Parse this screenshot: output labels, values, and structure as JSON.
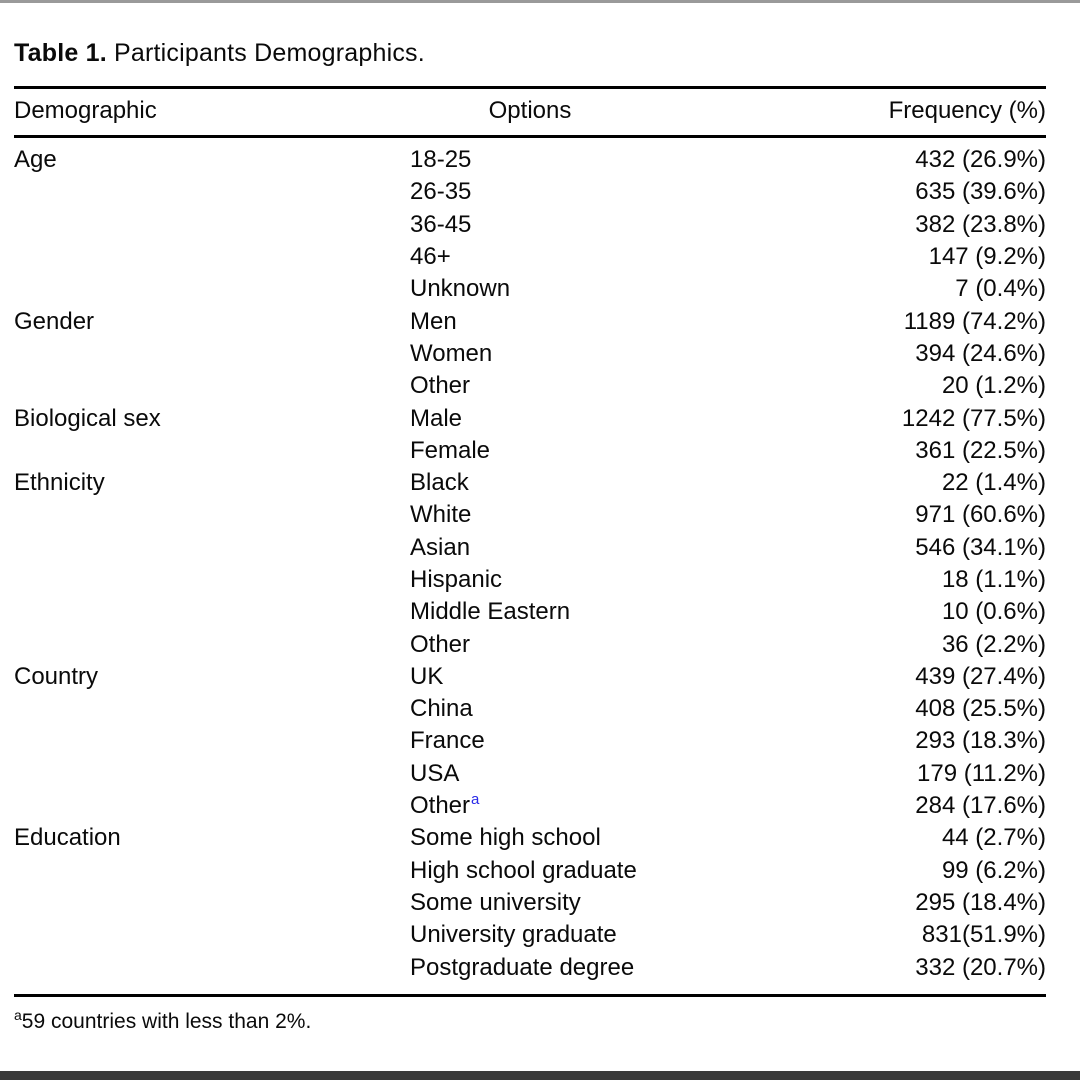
{
  "caption": {
    "label": "Table 1.",
    "text": " Participants Demographics."
  },
  "table": {
    "headers": {
      "demographic": "Demographic",
      "options": "Options",
      "frequency": "Frequency (%)"
    },
    "groups": [
      {
        "demographic": "Age",
        "rows": [
          {
            "option": "18-25",
            "frequency": "432 (26.9%)"
          },
          {
            "option": "26-35",
            "frequency": "635 (39.6%)"
          },
          {
            "option": "36-45",
            "frequency": "382 (23.8%)"
          },
          {
            "option": "46+",
            "frequency": "147 (9.2%)"
          },
          {
            "option": "Unknown",
            "frequency": "7 (0.4%)"
          }
        ]
      },
      {
        "demographic": "Gender",
        "rows": [
          {
            "option": "Men",
            "frequency": "1189 (74.2%)"
          },
          {
            "option": "Women",
            "frequency": "394 (24.6%)"
          },
          {
            "option": "Other",
            "frequency": "20 (1.2%)"
          }
        ]
      },
      {
        "demographic": "Biological sex",
        "rows": [
          {
            "option": "Male",
            "frequency": "1242 (77.5%)"
          },
          {
            "option": "Female",
            "frequency": "361 (22.5%)"
          }
        ]
      },
      {
        "demographic": "Ethnicity",
        "rows": [
          {
            "option": "Black",
            "frequency": "22 (1.4%)"
          },
          {
            "option": "White",
            "frequency": "971 (60.6%)"
          },
          {
            "option": "Asian",
            "frequency": "546 (34.1%)"
          },
          {
            "option": "Hispanic",
            "frequency": "18 (1.1%)"
          },
          {
            "option": "Middle Eastern",
            "frequency": "10 (0.6%)"
          },
          {
            "option": "Other",
            "frequency": "36 (2.2%)"
          }
        ]
      },
      {
        "demographic": "Country",
        "rows": [
          {
            "option": "UK",
            "frequency": "439 (27.4%)"
          },
          {
            "option": "China",
            "frequency": "408 (25.5%)"
          },
          {
            "option": "France",
            "frequency": "293 (18.3%)"
          },
          {
            "option": "USA",
            "frequency": "179 (11.2%)"
          },
          {
            "option": "Other",
            "marker": "a",
            "frequency": "284 (17.6%)"
          }
        ]
      },
      {
        "demographic": "Education",
        "rows": [
          {
            "option": "Some high school",
            "frequency": "44 (2.7%)"
          },
          {
            "option": "High school graduate",
            "frequency": "99 (6.2%)"
          },
          {
            "option": "Some university",
            "frequency": "295 (18.4%)"
          },
          {
            "option": "University graduate",
            "frequency": "831(51.9%)"
          },
          {
            "option": "Postgraduate degree",
            "frequency": "332 (20.7%)"
          }
        ]
      }
    ],
    "footnote": {
      "marker": "a",
      "text": "59 countries with less than 2%."
    }
  },
  "colors": {
    "marker_accent": "#2b2be8",
    "top_line": "#9a9a9a",
    "bottom_bar": "#3a3a3a",
    "text": "#0a0a0a",
    "rule": "#000000"
  }
}
